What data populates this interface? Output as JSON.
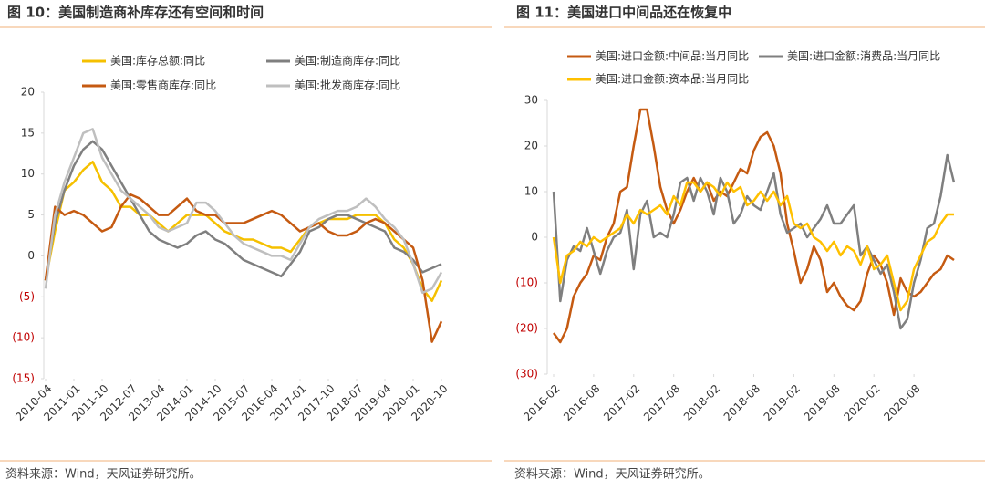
{
  "chart_data": [
    {
      "type": "line",
      "title": "图 10：美国制造商补库存还有空间和时间",
      "source": "资料来源：Wind，天风证券研究所。",
      "x": [
        "2010-04",
        "2010-07",
        "2010-10",
        "2011-01",
        "2011-04",
        "2011-07",
        "2011-10",
        "2012-01",
        "2012-04",
        "2012-07",
        "2012-10",
        "2013-01",
        "2013-04",
        "2013-07",
        "2013-10",
        "2014-01",
        "2014-04",
        "2014-07",
        "2014-10",
        "2015-01",
        "2015-04",
        "2015-07",
        "2015-10",
        "2016-01",
        "2016-04",
        "2016-07",
        "2016-10",
        "2017-01",
        "2017-04",
        "2017-07",
        "2017-10",
        "2018-01",
        "2018-04",
        "2018-07",
        "2018-10",
        "2019-01",
        "2019-04",
        "2019-07",
        "2019-10",
        "2020-01",
        "2020-04",
        "2020-07",
        "2020-10"
      ],
      "xticks": [
        "2010-04",
        "2011-01",
        "2011-10",
        "2012-07",
        "2013-04",
        "2014-01",
        "2014-10",
        "2015-07",
        "2016-04",
        "2017-01",
        "2017-10",
        "2018-07",
        "2019-04",
        "2020-01",
        "2020-10"
      ],
      "ylim": [
        -15,
        20
      ],
      "yticks": [
        20,
        15,
        10,
        5,
        0,
        {
          "value": -5,
          "label": "(5)"
        },
        {
          "value": -10,
          "label": "(10)"
        },
        {
          "value": -15,
          "label": "(15)"
        }
      ],
      "negative_tick_color": "#c00000",
      "series": [
        {
          "name": "美国:库存总额:同比",
          "color": "#f5c000",
          "values": [
            -3,
            3,
            8,
            9,
            10.5,
            11.5,
            9,
            8,
            6,
            6,
            5,
            5,
            4,
            3,
            4,
            5,
            5,
            5,
            4,
            3,
            2.5,
            2,
            2,
            1.5,
            1,
            1,
            0.5,
            2,
            3.5,
            4,
            4.5,
            4.5,
            4.5,
            5,
            5,
            5,
            4,
            2,
            1,
            -1,
            -4,
            -5.5,
            -3
          ]
        },
        {
          "name": "美国:制造商库存:同比",
          "color": "#7f7f7f",
          "values": [
            -3,
            4,
            8,
            11,
            13,
            14,
            13,
            11,
            9,
            7,
            5,
            3,
            2,
            1.5,
            1,
            1.5,
            2.5,
            3,
            2,
            1.5,
            0.5,
            -0.5,
            -1,
            -1.5,
            -2,
            -2.5,
            -1,
            0.5,
            3,
            3.5,
            4.5,
            5,
            5,
            4.5,
            4,
            3.5,
            3,
            1,
            0.5,
            -0.5,
            -2,
            -1.5,
            -1
          ]
        },
        {
          "name": "美国:零售商库存:同比",
          "color": "#c55a11",
          "values": [
            -3,
            6,
            5,
            5.5,
            5,
            4,
            3,
            3.5,
            6,
            7.5,
            7,
            6,
            5,
            5,
            6,
            7,
            5.5,
            5,
            5,
            4,
            4,
            4,
            4.5,
            5,
            5.5,
            5,
            4,
            3,
            3.5,
            4,
            3,
            2.5,
            2.5,
            3,
            4,
            4.5,
            4,
            3,
            2,
            1,
            -3,
            -10.5,
            -8
          ]
        },
        {
          "name": "美国:批发商库存:同比",
          "color": "#bfbfbf",
          "values": [
            -4,
            5,
            9,
            12,
            15,
            15.5,
            12,
            10,
            8,
            7,
            6,
            5,
            3.5,
            3,
            3.5,
            4,
            6.5,
            6.5,
            5.5,
            4,
            2.5,
            1.5,
            1,
            0.5,
            0,
            0,
            -0.5,
            1.5,
            3.5,
            4.5,
            5,
            5.5,
            5.5,
            6,
            7,
            6,
            4.5,
            3.5,
            2,
            -1,
            -4.5,
            -4,
            -2
          ]
        }
      ]
    },
    {
      "type": "line",
      "title": "图 11：美国进口中间品还在恢复中",
      "source": "资料来源：Wind，天风证券研究所。",
      "x": [
        "2016-02",
        "2016-03",
        "2016-04",
        "2016-05",
        "2016-06",
        "2016-07",
        "2016-08",
        "2016-09",
        "2016-10",
        "2016-11",
        "2016-12",
        "2017-01",
        "2017-02",
        "2017-03",
        "2017-04",
        "2017-05",
        "2017-06",
        "2017-07",
        "2017-08",
        "2017-09",
        "2017-10",
        "2017-11",
        "2017-12",
        "2018-01",
        "2018-02",
        "2018-03",
        "2018-04",
        "2018-05",
        "2018-06",
        "2018-07",
        "2018-08",
        "2018-09",
        "2018-10",
        "2018-11",
        "2018-12",
        "2019-01",
        "2019-02",
        "2019-03",
        "2019-04",
        "2019-05",
        "2019-06",
        "2019-07",
        "2019-08",
        "2019-09",
        "2019-10",
        "2019-11",
        "2019-12",
        "2020-01",
        "2020-02",
        "2020-03",
        "2020-04",
        "2020-05",
        "2020-06",
        "2020-07",
        "2020-08",
        "2020-09",
        "2020-10",
        "2020-11",
        "2020-12",
        "2021-01",
        "2021-02"
      ],
      "xticks": [
        "2016-02",
        "2016-08",
        "2017-02",
        "2017-08",
        "2018-02",
        "2018-08",
        "2019-02",
        "2019-08",
        "2020-02",
        "2020-08"
      ],
      "ylim": [
        -30,
        30
      ],
      "yticks": [
        30,
        20,
        10,
        0,
        {
          "value": -10,
          "label": "(10)"
        },
        {
          "value": -20,
          "label": "(20)"
        },
        {
          "value": -30,
          "label": "(30)"
        }
      ],
      "negative_tick_color": "#c00000",
      "series": [
        {
          "name": "美国:进口金额:中间品:当月同比",
          "color": "#c55a11",
          "values": [
            -21,
            -23,
            -20,
            -13,
            -10,
            -8,
            -4,
            -5,
            0,
            3,
            10,
            11,
            20,
            28,
            28,
            20,
            11,
            6,
            3,
            6,
            10,
            13,
            10,
            12,
            8,
            10,
            9,
            12,
            15,
            14,
            19,
            22,
            23,
            20,
            14,
            3,
            -3,
            -10,
            -7,
            -2,
            -5,
            -12,
            -10,
            -13,
            -15,
            -16,
            -14,
            -8,
            -4,
            -6,
            -10,
            -17,
            -9,
            -12,
            -13,
            -12,
            -10,
            -8,
            -7,
            -4,
            -5
          ]
        },
        {
          "name": "美国:进口金额:消费品:当月同比",
          "color": "#7f7f7f",
          "values": [
            10,
            -14,
            -5,
            -2,
            -3,
            2,
            -3,
            -8,
            -3,
            0,
            1,
            6,
            -7,
            5,
            8,
            0,
            1,
            0,
            5,
            12,
            13,
            8,
            13,
            10,
            5,
            13,
            10,
            3,
            5,
            9,
            7,
            6,
            10,
            14,
            5,
            1,
            2,
            3,
            0,
            2,
            4,
            7,
            3,
            3,
            5,
            7,
            -4,
            -2,
            -5,
            -8,
            -6,
            -12,
            -20,
            -18,
            -10,
            -5,
            2,
            3,
            9,
            18,
            12
          ]
        },
        {
          "name": "美国:进口金额:资本品:当月同比",
          "color": "#ffc000",
          "values": [
            0,
            -10,
            -4,
            -3,
            -1,
            -2,
            0,
            -1,
            0,
            1,
            2,
            5,
            3,
            6,
            5,
            6,
            7,
            5,
            9,
            7,
            12,
            12,
            10,
            12,
            11,
            9,
            12,
            10,
            11,
            7,
            8,
            10,
            8,
            10,
            7,
            9,
            3,
            2,
            3,
            0,
            -1,
            -3,
            -1,
            -4,
            -2,
            -3,
            -6,
            -2,
            -7,
            -6,
            -4,
            -10,
            -16,
            -14,
            -7,
            -4,
            -1,
            0,
            3,
            5,
            5
          ]
        }
      ]
    }
  ]
}
